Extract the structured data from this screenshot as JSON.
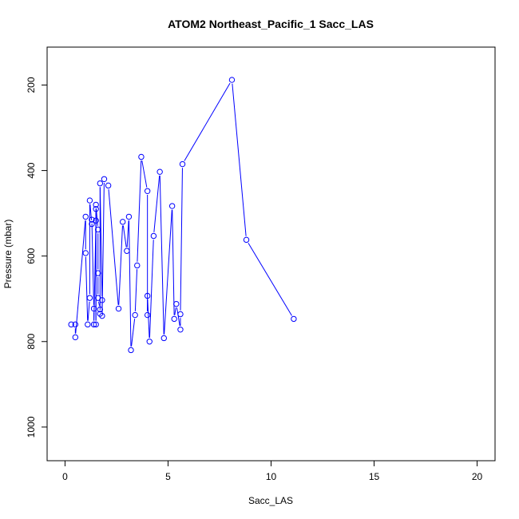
{
  "chart_data": {
    "type": "line",
    "title": "ATOM2 Northeast_Pacific_1 Sacc_LAS",
    "xlabel": "Sacc_LAS",
    "ylabel": "Pressure (mbar)",
    "xlim": [
      0,
      20
    ],
    "ylim": [
      1040,
      150
    ],
    "y_reversed": true,
    "x_ticks": [
      0,
      5,
      10,
      15,
      20
    ],
    "y_ticks": [
      200,
      400,
      600,
      800,
      1000
    ],
    "grid": false,
    "line_color": "#0000ff",
    "marker": "open-circle",
    "series": [
      {
        "values": [
          [
            0.3,
            760
          ],
          [
            0.5,
            760
          ],
          [
            0.5,
            790
          ],
          [
            1.0,
            508
          ],
          [
            1.0,
            593
          ],
          [
            1.1,
            760
          ],
          [
            1.2,
            698
          ],
          [
            1.2,
            470
          ],
          [
            1.3,
            525
          ],
          [
            1.3,
            515
          ],
          [
            1.4,
            723
          ],
          [
            1.4,
            760
          ],
          [
            1.5,
            517
          ],
          [
            1.5,
            490
          ],
          [
            1.5,
            760
          ],
          [
            1.5,
            480
          ],
          [
            1.6,
            538
          ],
          [
            1.6,
            640
          ],
          [
            1.6,
            698
          ],
          [
            1.7,
            725
          ],
          [
            1.7,
            735
          ],
          [
            1.7,
            430
          ],
          [
            1.8,
            703
          ],
          [
            1.8,
            740
          ],
          [
            1.9,
            420
          ],
          [
            2.1,
            435
          ],
          [
            2.6,
            723
          ],
          [
            2.8,
            520
          ],
          [
            3.0,
            588
          ],
          [
            3.1,
            508
          ],
          [
            3.2,
            820
          ],
          [
            3.4,
            738
          ],
          [
            3.5,
            622
          ],
          [
            3.7,
            368
          ],
          [
            4.0,
            448
          ],
          [
            4.0,
            738
          ],
          [
            4.0,
            693
          ],
          [
            4.1,
            800
          ],
          [
            4.3,
            553
          ],
          [
            4.6,
            403
          ],
          [
            4.8,
            792
          ],
          [
            5.2,
            483
          ],
          [
            5.3,
            747
          ],
          [
            5.4,
            712
          ],
          [
            5.6,
            772
          ],
          [
            5.6,
            736
          ],
          [
            5.7,
            385
          ],
          [
            8.1,
            188
          ],
          [
            8.8,
            562
          ],
          [
            11.1,
            747
          ]
        ]
      }
    ]
  }
}
